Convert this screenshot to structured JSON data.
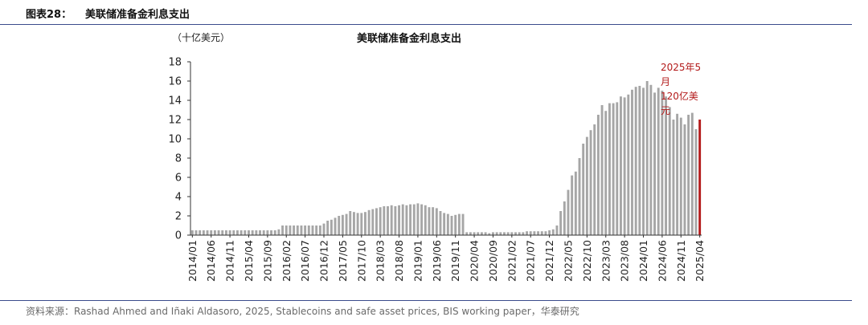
{
  "figure": {
    "label": "图表28：",
    "title": "美联储准备金利息支出",
    "unit": "（十亿美元）",
    "source": "资料来源：Rashad Ahmed and Iñaki Aldasoro, 2025, Stablecoins and safe asset prices, BIS working paper，华泰研究"
  },
  "colors": {
    "bar": "#a6a6a6",
    "highlight": "#b31a1a",
    "axis": "#333333",
    "rule": "#3a4b8c"
  },
  "chart_data": {
    "type": "bar",
    "title": "美联储准备金利息支出",
    "ylabel": "（十亿美元）",
    "xlabel": "",
    "ylim": [
      0,
      18
    ],
    "yticks": [
      0,
      2,
      4,
      6,
      8,
      10,
      12,
      14,
      16,
      18
    ],
    "grid": false,
    "start_month": "2014/01",
    "end_month": "2025/05",
    "tick_labels": [
      "2014/01",
      "2014/06",
      "2014/11",
      "2015/04",
      "2015/09",
      "2016/02",
      "2016/07",
      "2016/12",
      "2017/05",
      "2017/10",
      "2018/03",
      "2018/08",
      "2019/01",
      "2019/06",
      "2019/11",
      "2020/04",
      "2020/09",
      "2021/02",
      "2021/07",
      "2021/12",
      "2022/05",
      "2022/10",
      "2023/03",
      "2023/08",
      "2024/01",
      "2024/06",
      "2024/11",
      "2025/04"
    ],
    "values": [
      0.5,
      0.5,
      0.5,
      0.5,
      0.5,
      0.5,
      0.5,
      0.5,
      0.5,
      0.5,
      0.5,
      0.5,
      0.5,
      0.5,
      0.5,
      0.5,
      0.5,
      0.5,
      0.5,
      0.5,
      0.5,
      0.5,
      0.5,
      0.6,
      1.0,
      1.0,
      1.0,
      1.0,
      1.0,
      1.0,
      1.0,
      1.0,
      1.0,
      1.0,
      1.0,
      1.2,
      1.5,
      1.6,
      1.8,
      2.0,
      2.1,
      2.2,
      2.5,
      2.4,
      2.3,
      2.3,
      2.4,
      2.6,
      2.7,
      2.8,
      2.9,
      3.0,
      3.0,
      3.1,
      3.0,
      3.1,
      3.2,
      3.1,
      3.2,
      3.2,
      3.3,
      3.2,
      3.1,
      2.9,
      2.9,
      2.8,
      2.5,
      2.3,
      2.2,
      2.0,
      2.1,
      2.2,
      2.2,
      0.3,
      0.3,
      0.3,
      0.3,
      0.3,
      0.3,
      0.2,
      0.3,
      0.3,
      0.3,
      0.3,
      0.3,
      0.3,
      0.3,
      0.3,
      0.3,
      0.4,
      0.4,
      0.4,
      0.4,
      0.4,
      0.4,
      0.5,
      0.6,
      1.0,
      2.5,
      3.5,
      4.7,
      6.2,
      6.6,
      8.0,
      9.5,
      10.2,
      10.9,
      11.5,
      12.5,
      13.5,
      12.9,
      13.7,
      13.7,
      13.8,
      14.4,
      14.3,
      14.6,
      15.1,
      15.4,
      15.5,
      15.3,
      16.0,
      15.6,
      14.8,
      15.3,
      15.0,
      14.4,
      13.3,
      12.0,
      12.6,
      12.2,
      11.5,
      12.5,
      12.7,
      11.0,
      12.0
    ],
    "annotation": {
      "lines": [
        "2025年5",
        "月",
        "120亿美",
        "元"
      ],
      "index": 136
    }
  }
}
